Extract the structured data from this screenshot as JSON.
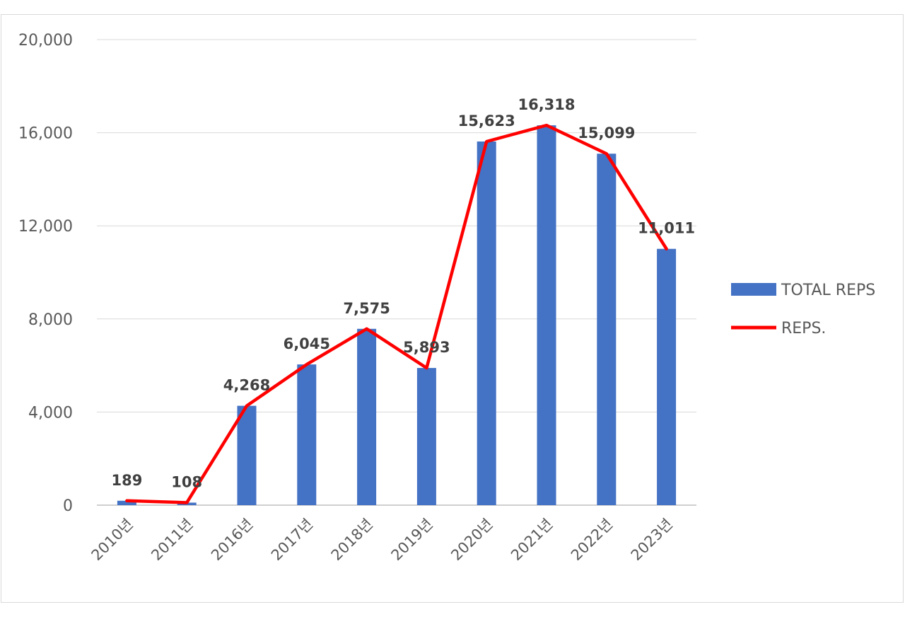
{
  "chart_data": {
    "type": "bar",
    "categories": [
      "2010년",
      "2011년",
      "2016년",
      "2017년",
      "2018년",
      "2019년",
      "2020년",
      "2021년",
      "2022년",
      "2023년"
    ],
    "series": [
      {
        "name": "TOTAL REPS",
        "type": "bar",
        "color": "#4472C4",
        "values": [
          189,
          108,
          4268,
          6045,
          7575,
          5893,
          15623,
          16318,
          15099,
          11011
        ]
      },
      {
        "name": "REPS.",
        "type": "line",
        "color": "#FF0000",
        "values": [
          189,
          108,
          4268,
          6045,
          7575,
          5893,
          15623,
          16318,
          15099,
          11011
        ]
      }
    ],
    "data_labels": [
      "189",
      "108",
      "4,268",
      "6,045",
      "7,575",
      "5,893",
      "15,623",
      "16,318",
      "15,099",
      "11,011"
    ],
    "y_ticks": [
      "0",
      "4,000",
      "8,000",
      "12,000",
      "16,000",
      "20,000"
    ],
    "ylim": [
      0,
      20000
    ],
    "grid": true,
    "legend": "right"
  }
}
